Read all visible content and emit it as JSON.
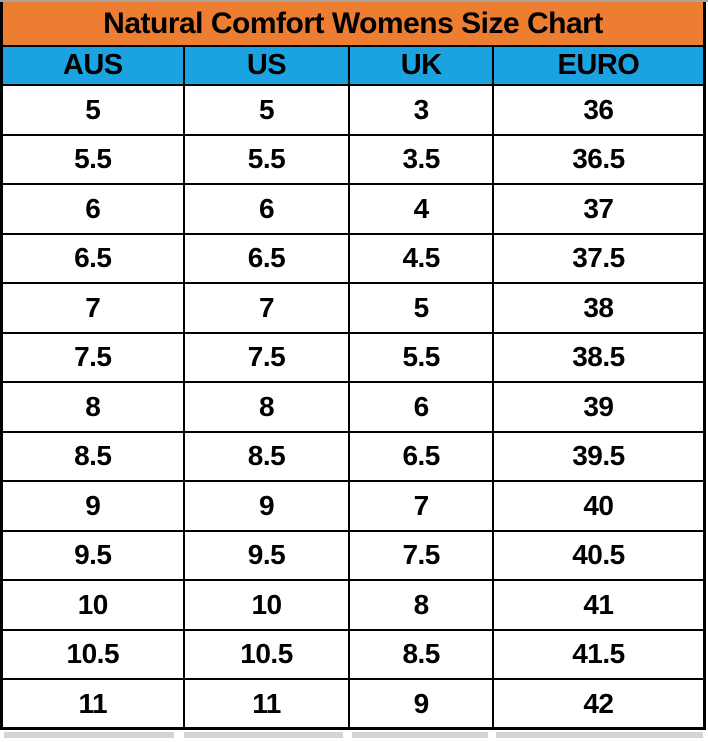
{
  "chart_data": {
    "type": "table",
    "title": "Natural Comfort Womens Size Chart",
    "columns": [
      "AUS",
      "US",
      "UK",
      "EURO"
    ],
    "rows": [
      [
        "5",
        "5",
        "3",
        "36"
      ],
      [
        "5.5",
        "5.5",
        "3.5",
        "36.5"
      ],
      [
        "6",
        "6",
        "4",
        "37"
      ],
      [
        "6.5",
        "6.5",
        "4.5",
        "37.5"
      ],
      [
        "7",
        "7",
        "5",
        "38"
      ],
      [
        "7.5",
        "7.5",
        "5.5",
        "38.5"
      ],
      [
        "8",
        "8",
        "6",
        "39"
      ],
      [
        "8.5",
        "8.5",
        "6.5",
        "39.5"
      ],
      [
        "9",
        "9",
        "7",
        "40"
      ],
      [
        "9.5",
        "9.5",
        "7.5",
        "40.5"
      ],
      [
        "10",
        "10",
        "8",
        "41"
      ],
      [
        "10.5",
        "10.5",
        "8.5",
        "41.5"
      ],
      [
        "11",
        "11",
        "9",
        "42"
      ]
    ]
  },
  "colors": {
    "title-bg": "#ED7D31",
    "header-bg": "#1BA3E1",
    "grid": "#000000",
    "text": "#000000",
    "shadow": "#D4D4D4"
  }
}
